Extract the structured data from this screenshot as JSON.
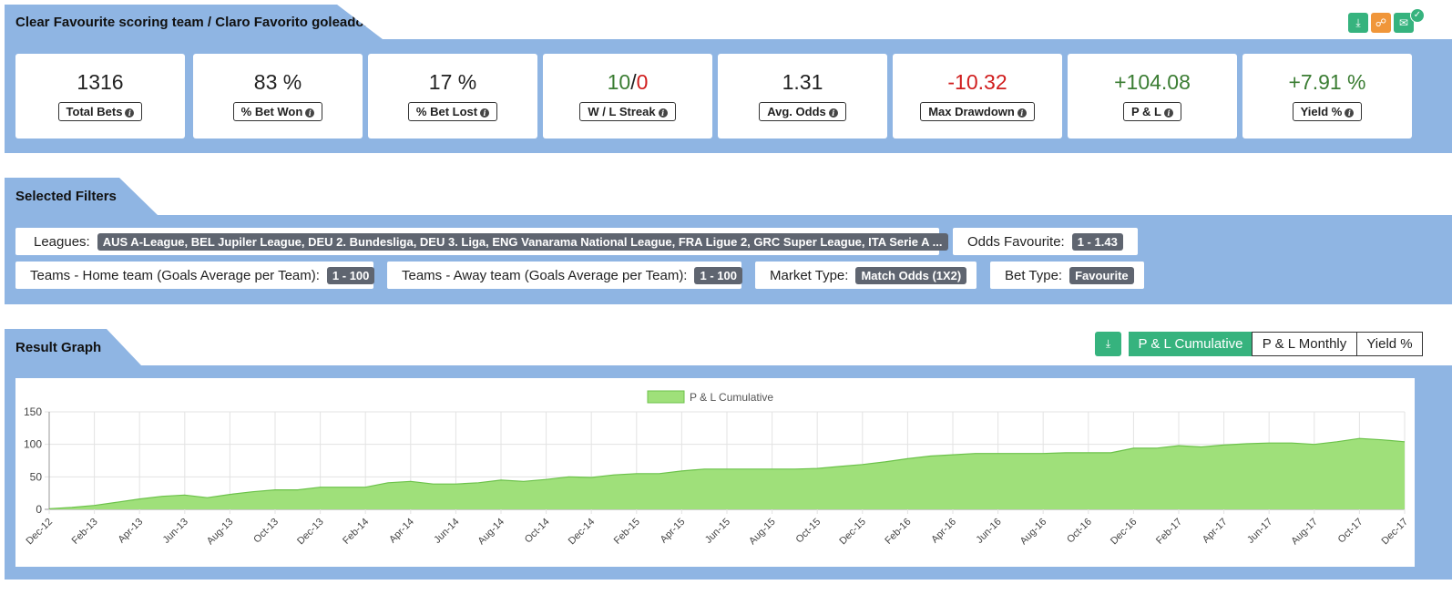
{
  "header": {
    "title": "Clear Favourite scoring team / Claro Favorito goleador"
  },
  "header_actions": [
    {
      "name": "download-icon",
      "color": "#36b37e"
    },
    {
      "name": "share-icon",
      "color": "#f0963a"
    },
    {
      "name": "email-icon",
      "color": "#36b37e"
    }
  ],
  "stats": [
    {
      "value": "1316",
      "label": "Total Bets"
    },
    {
      "value": "83 %",
      "label": "% Bet Won"
    },
    {
      "value": "17 %",
      "label": "% Bet Lost"
    },
    {
      "value_w": "10",
      "sep": "/",
      "value_l": "0",
      "label": "W / L Streak"
    },
    {
      "value": "1.31",
      "label": "Avg. Odds"
    },
    {
      "value": "-10.32",
      "label": "Max Drawdown"
    },
    {
      "value": "+104.08",
      "label": "P & L"
    },
    {
      "value": "+7.91 %",
      "label": "Yield %"
    }
  ],
  "filters_section": {
    "title": "Selected Filters"
  },
  "filters": [
    {
      "label": "Leagues:",
      "value": "AUS A-League, BEL Jupiler League, DEU 2. Bundesliga, DEU 3. Liga, ENG Vanarama National League, FRA Ligue 2, GRC Super League, ITA Serie A ..."
    },
    {
      "label": "Odds Favourite:",
      "value": "1 - 1.43"
    },
    {
      "label": "Teams - Home team (Goals Average per Team):",
      "value": "1 - 100"
    },
    {
      "label": "Teams - Away team (Goals Average per Team):",
      "value": "1 - 100"
    },
    {
      "label": "Market Type:",
      "value": "Match Odds (1X2)"
    },
    {
      "label": "Bet Type:",
      "value": "Favourite"
    }
  ],
  "graph_section": {
    "title": "Result Graph",
    "tabs": [
      "P & L Cumulative",
      "P & L Monthly",
      "Yield %"
    ],
    "active_tab": "P & L Cumulative"
  },
  "colors": {
    "panel": "#8fb5e3",
    "positive": "#3b7d33",
    "negative": "#d01d1d",
    "accent": "#36b37e",
    "fill": "#9fe07a",
    "line": "#6cc24a"
  },
  "chart_data": {
    "type": "area",
    "legend": "P & L Cumulative",
    "legend_position": "top-center",
    "grid": true,
    "ylim": [
      0,
      150
    ],
    "yticks": [
      0,
      50,
      100,
      150
    ],
    "x": [
      "Dec-12",
      "Jan-13",
      "Feb-13",
      "Mar-13",
      "Apr-13",
      "May-13",
      "Jun-13",
      "Jul-13",
      "Aug-13",
      "Sep-13",
      "Oct-13",
      "Nov-13",
      "Dec-13",
      "Jan-14",
      "Feb-14",
      "Mar-14",
      "Apr-14",
      "May-14",
      "Jun-14",
      "Jul-14",
      "Aug-14",
      "Sep-14",
      "Oct-14",
      "Nov-14",
      "Dec-14",
      "Jan-15",
      "Feb-15",
      "Mar-15",
      "Apr-15",
      "May-15",
      "Jun-15",
      "Jul-15",
      "Aug-15",
      "Sep-15",
      "Oct-15",
      "Nov-15",
      "Dec-15",
      "Jan-16",
      "Feb-16",
      "Mar-16",
      "Apr-16",
      "May-16",
      "Jun-16",
      "Jul-16",
      "Aug-16",
      "Sep-16",
      "Oct-16",
      "Nov-16",
      "Dec-16",
      "Jan-17",
      "Feb-17",
      "Mar-17",
      "Apr-17",
      "May-17",
      "Jun-17",
      "Jul-17",
      "Aug-17",
      "Sep-17",
      "Oct-17",
      "Nov-17",
      "Dec-17"
    ],
    "xtick_labels": [
      "Dec-12",
      "Feb-13",
      "Apr-13",
      "Jun-13",
      "Aug-13",
      "Oct-13",
      "Dec-13",
      "Feb-14",
      "Apr-14",
      "Jun-14",
      "Aug-14",
      "Oct-14",
      "Dec-14",
      "Feb-15",
      "Apr-15",
      "Jun-15",
      "Aug-15",
      "Oct-15",
      "Dec-15",
      "Feb-16",
      "Apr-16",
      "Jun-16",
      "Aug-16",
      "Oct-16",
      "Dec-16",
      "Feb-17",
      "Apr-17",
      "Jun-17",
      "Aug-17",
      "Oct-17",
      "Dec-17"
    ],
    "values": [
      1,
      3,
      6,
      11,
      16,
      20,
      22,
      18,
      23,
      27,
      30,
      30,
      34,
      34,
      34,
      41,
      43,
      39,
      39,
      41,
      45,
      43,
      46,
      50,
      49,
      53,
      55,
      55,
      59,
      62,
      62,
      62,
      62,
      62,
      63,
      66,
      69,
      73,
      78,
      82,
      84,
      86,
      86,
      86,
      86,
      87,
      87,
      87,
      94,
      94,
      98,
      96,
      99,
      101,
      102,
      102,
      100,
      104,
      109,
      107,
      104
    ]
  }
}
